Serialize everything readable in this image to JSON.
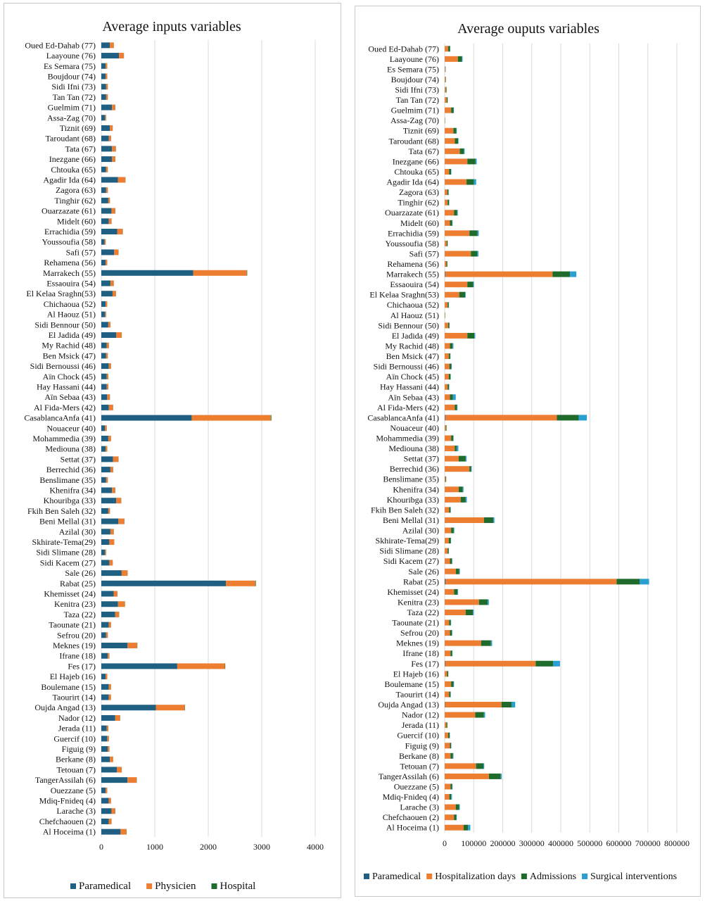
{
  "categories": [
    "Oued Ed-Dahab (77)",
    "Laayoune (76)",
    "Es Semara (75)",
    "Boujdour (74)",
    "Sidi Ifni (73)",
    "Tan Tan (72)",
    "Guelmim (71)",
    "Assa-Zag (70)",
    "Tiznit (69)",
    "Taroudant (68)",
    "Tata (67)",
    "Inezgane  (66)",
    "Chtouka  (65)",
    "Agadir Ida (64)",
    "Zagora (63)",
    "Tinghir (62)",
    "Ouarzazate (61)",
    "Midelt (60)",
    "Errachidia (59)",
    "Youssoufia (58)",
    "Safi (57)",
    "Rehamena (56)",
    "Marrakech (55)",
    "Essaouira (54)",
    "El Kelaa Sraghn(53)",
    "Chichaoua (52)",
    "Al Haouz (51)",
    "Sidi Bennour (50)",
    "El Jadida (49)",
    "My Rachid (48)",
    "Ben Msick (47)",
    "Sidi Bernoussi (46)",
    "Aïn Chock (45)",
    "Hay Hassani (44)",
    "Aïn Sebaa (43)",
    "Al Fida-Mers (42)",
    "CasablancaAnfa (41)",
    "Nouaceur (40)",
    "Mohammedia (39)",
    "Mediouna (38)",
    "Settat (37)",
    "Berrechid (36)",
    "Benslimane (35)",
    "Khenifra (34)",
    "Khouribga (33)",
    "Fkih Ben Saleh (32)",
    "Beni Mellal (31)",
    "Azilal (30)",
    "Skhirate-Tema(29)",
    "Sidi Slimane (28)",
    "Sidi Kacem (27)",
    "Sale (26)",
    "Rabat (25)",
    "Khemisset (24)",
    "Kenitra (23)",
    "Taza (22)",
    "Taounate (21)",
    "Sefrou (20)",
    "Meknes (19)",
    "Ifrane (18)",
    "Fes (17)",
    "El Hajeb (16)",
    "Boulemane (15)",
    "Taourirt (14)",
    "Oujda Angad (13)",
    "Nador (12)",
    "Jerada (11)",
    "Guercif (10)",
    "Figuig (9)",
    "Berkane (8)",
    "Tetouan (7)",
    "TangerAssilah (6)",
    "Ouezzane (5)",
    "Mdiq-Fnideq (4)",
    "Larache (3)",
    "Chefchaouen (2)",
    "Al Hoceima (1)"
  ],
  "colors": {
    "blue": "#1f5f82",
    "orange": "#ed7d31",
    "green": "#1e6b2c",
    "cyan": "#2aa0d2"
  },
  "chart_data": [
    {
      "type": "bar",
      "orientation": "horizontal",
      "stacked": true,
      "title": "Average inputs variables",
      "xlim": [
        0,
        4000
      ],
      "xticks": [
        0,
        1000,
        2000,
        3000,
        4000
      ],
      "grid": true,
      "legend_position": "bottom",
      "series": [
        {
          "name": "Paramedical",
          "color": "#1f5f82",
          "values": [
            160,
            330,
            80,
            80,
            90,
            90,
            200,
            70,
            160,
            140,
            200,
            200,
            90,
            310,
            90,
            130,
            190,
            140,
            300,
            60,
            240,
            80,
            1720,
            170,
            210,
            80,
            70,
            130,
            280,
            100,
            90,
            140,
            100,
            100,
            110,
            140,
            1690,
            70,
            130,
            80,
            220,
            170,
            90,
            200,
            280,
            130,
            320,
            170,
            150,
            70,
            150,
            380,
            2330,
            230,
            310,
            260,
            140,
            90,
            490,
            120,
            1420,
            80,
            140,
            140,
            1020,
            260,
            100,
            110,
            120,
            160,
            290,
            490,
            80,
            140,
            190,
            140,
            360
          ]
        },
        {
          "name": "Physicien",
          "color": "#ed7d31",
          "values": [
            70,
            90,
            30,
            30,
            30,
            30,
            60,
            20,
            50,
            40,
            70,
            60,
            30,
            140,
            30,
            30,
            70,
            50,
            100,
            20,
            80,
            30,
            1000,
            60,
            60,
            30,
            20,
            40,
            100,
            40,
            30,
            40,
            30,
            30,
            50,
            80,
            1480,
            30,
            50,
            30,
            100,
            50,
            30,
            60,
            90,
            30,
            110,
            60,
            90,
            20,
            60,
            110,
            550,
            70,
            130,
            70,
            40,
            30,
            180,
            30,
            890,
            30,
            40,
            40,
            540,
            90,
            30,
            30,
            30,
            60,
            90,
            170,
            30,
            40,
            70,
            50,
            110
          ]
        },
        {
          "name": "Hospital",
          "color": "#1e6b2c",
          "values": [
            3,
            3,
            2,
            2,
            2,
            2,
            3,
            2,
            3,
            3,
            3,
            3,
            2,
            3,
            2,
            2,
            3,
            2,
            3,
            2,
            3,
            2,
            8,
            3,
            3,
            2,
            2,
            2,
            3,
            2,
            2,
            2,
            2,
            2,
            2,
            2,
            10,
            2,
            2,
            2,
            3,
            3,
            2,
            3,
            3,
            2,
            3,
            3,
            2,
            2,
            3,
            3,
            10,
            3,
            3,
            3,
            2,
            2,
            4,
            2,
            8,
            2,
            2,
            2,
            5,
            3,
            2,
            2,
            2,
            2,
            3,
            4,
            2,
            2,
            3,
            2,
            3
          ]
        }
      ]
    },
    {
      "type": "bar",
      "orientation": "horizontal",
      "stacked": true,
      "title": "Average ouputs variables",
      "xlim": [
        0,
        800000
      ],
      "xticks": [
        0,
        100000,
        200000,
        300000,
        400000,
        500000,
        600000,
        700000,
        800000
      ],
      "grid": true,
      "legend_position": "bottom",
      "series": [
        {
          "name": "Paramedical",
          "color": "#1f5f82",
          "values": [
            200,
            500,
            100,
            100,
            100,
            100,
            300,
            50,
            200,
            200,
            300,
            300,
            100,
            400,
            100,
            200,
            200,
            200,
            400,
            100,
            300,
            100,
            1700,
            200,
            300,
            100,
            100,
            200,
            300,
            100,
            100,
            200,
            100,
            100,
            100,
            200,
            1700,
            100,
            200,
            100,
            300,
            200,
            100,
            300,
            300,
            200,
            400,
            200,
            200,
            100,
            200,
            400,
            2300,
            300,
            300,
            300,
            200,
            100,
            500,
            100,
            1400,
            100,
            200,
            200,
            1000,
            300,
            100,
            100,
            100,
            200,
            300,
            500,
            100,
            200,
            200,
            200,
            400
          ]
        },
        {
          "name": "Hospitalization days",
          "color": "#ed7d31",
          "values": [
            12000,
            45000,
            2000,
            3000,
            4000,
            7000,
            22000,
            1000,
            30000,
            35000,
            52000,
            78000,
            15000,
            75000,
            9000,
            10000,
            32000,
            18000,
            85000,
            7000,
            90000,
            6000,
            370000,
            78000,
            50000,
            10000,
            1500,
            12000,
            78000,
            18000,
            14000,
            16000,
            14000,
            10000,
            18000,
            35000,
            385000,
            4000,
            22000,
            35000,
            48000,
            85000,
            3000,
            48000,
            55000,
            15000,
            135000,
            22000,
            14000,
            10000,
            18000,
            38000,
            590000,
            32000,
            118000,
            72000,
            15000,
            18000,
            125000,
            20000,
            312000,
            8000,
            22000,
            15000,
            195000,
            105000,
            6000,
            12000,
            18000,
            20000,
            108000,
            152000,
            20000,
            16000,
            38000,
            32000,
            65000
          ]
        },
        {
          "name": "Admissions",
          "color": "#1e6b2c",
          "values": [
            6000,
            14000,
            1000,
            1000,
            2000,
            3000,
            8000,
            500,
            10000,
            11000,
            14000,
            28000,
            7000,
            25000,
            4000,
            5000,
            11000,
            8000,
            28000,
            3000,
            22000,
            3000,
            60000,
            20000,
            20000,
            4000,
            500,
            4000,
            24000,
            9000,
            5000,
            7000,
            6000,
            5000,
            10000,
            7000,
            75000,
            2000,
            7000,
            6000,
            24000,
            6000,
            2000,
            14000,
            17000,
            5000,
            32000,
            9000,
            7000,
            4000,
            7000,
            12000,
            80000,
            12000,
            30000,
            25000,
            6000,
            7000,
            34000,
            6000,
            60000,
            4000,
            8000,
            5000,
            35000,
            30000,
            3000,
            5000,
            4000,
            8000,
            25000,
            40000,
            6000,
            6000,
            12000,
            8000,
            15000
          ]
        },
        {
          "name": "Surgical interventions",
          "color": "#2aa0d2",
          "values": [
            1000,
            2000,
            300,
            300,
            400,
            500,
            1500,
            200,
            1500,
            1500,
            2500,
            4000,
            1000,
            8000,
            700,
            800,
            2000,
            1000,
            4000,
            500,
            4000,
            500,
            22000,
            2500,
            2000,
            700,
            200,
            700,
            3000,
            3000,
            1000,
            1000,
            1000,
            700,
            10000,
            2000,
            28000,
            300,
            1500,
            6000,
            3000,
            2000,
            300,
            2500,
            4000,
            1000,
            4000,
            2000,
            1000,
            500,
            1000,
            2000,
            32000,
            2000,
            4000,
            3000,
            1000,
            1000,
            4000,
            1000,
            24000,
            500,
            2000,
            1000,
            12000,
            4000,
            500,
            1000,
            1000,
            2000,
            3000,
            4000,
            1000,
            3000,
            2000,
            1500,
            8000
          ]
        }
      ]
    }
  ]
}
